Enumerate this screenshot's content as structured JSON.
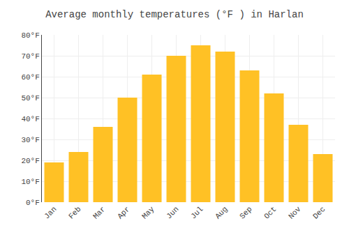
{
  "chart_data": {
    "type": "bar",
    "title": "Average monthly temperatures (°F ) in Harlan",
    "categories": [
      "Jan",
      "Feb",
      "Mar",
      "Apr",
      "May",
      "Jun",
      "Jul",
      "Aug",
      "Sep",
      "Oct",
      "Nov",
      "Dec"
    ],
    "values": [
      19,
      24,
      36,
      50,
      61,
      70,
      75,
      72,
      63,
      52,
      37,
      23
    ],
    "color": "#FFC125",
    "ylim": [
      0,
      80
    ],
    "yticks": [
      {
        "value": 0,
        "label": "0°F"
      },
      {
        "value": 10,
        "label": "10°F"
      },
      {
        "value": 20,
        "label": "20°F"
      },
      {
        "value": 30,
        "label": "30°F"
      },
      {
        "value": 40,
        "label": "40°F"
      },
      {
        "value": 50,
        "label": "50°F"
      },
      {
        "value": 60,
        "label": "60°F"
      },
      {
        "value": 70,
        "label": "70°F"
      },
      {
        "value": 80,
        "label": "80°F"
      }
    ],
    "grid": true
  }
}
